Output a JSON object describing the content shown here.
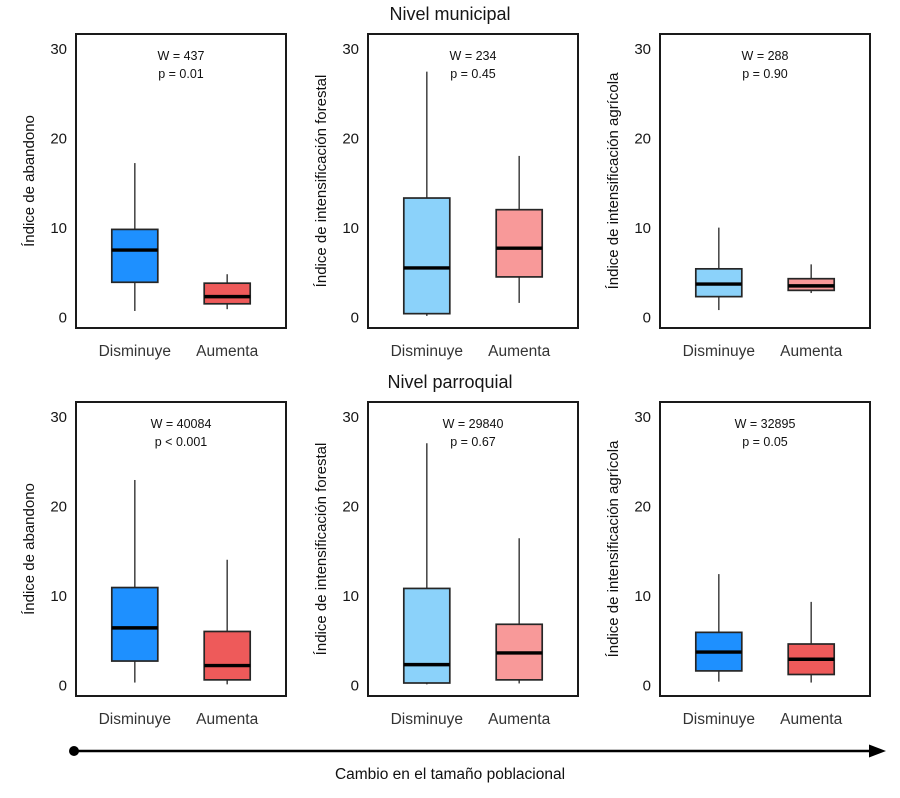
{
  "chart_data": {
    "type": "boxplot",
    "layout": "2 rows x 3 columns of panels",
    "x_categories": [
      "Disminuye",
      "Aumenta"
    ],
    "x_axis_title": "Cambio en el tamaño poblacional",
    "yticks": [
      0,
      10,
      20,
      30
    ],
    "ylim": [
      0,
      30
    ],
    "grid": "off",
    "legend": "none",
    "palette": {
      "disminuye_strong": "#1E90FF",
      "disminuye_light": "#8BD2FA",
      "aumenta_strong": "#EE5A5A",
      "aumenta_light": "#F89999",
      "box_outline": "#262626",
      "whisker": "#4d4d4d",
      "median": "#000000",
      "panel_border": "#1a1a1a"
    },
    "rows": [
      {
        "title": "Nivel municipal",
        "panels": [
          {
            "ylabel": "Índice de abandono",
            "stats_w": "W = 437",
            "stats_p": "p = 0.01",
            "boxes": [
              {
                "category": "Disminuye",
                "color_key": "disminuye_strong",
                "whisker_low": 0.7,
                "q1": 3.9,
                "median": 7.5,
                "q3": 9.8,
                "whisker_high": 17.2
              },
              {
                "category": "Aumenta",
                "color_key": "aumenta_strong",
                "whisker_low": 0.9,
                "q1": 1.5,
                "median": 2.3,
                "q3": 3.8,
                "whisker_high": 4.8
              }
            ]
          },
          {
            "ylabel": "Índice de intensificación forestal",
            "stats_w": "W = 234",
            "stats_p": "p = 0.45",
            "boxes": [
              {
                "category": "Disminuye",
                "color_key": "disminuye_light",
                "whisker_low": 0.15,
                "q1": 0.4,
                "median": 5.5,
                "q3": 13.3,
                "whisker_high": 27.4
              },
              {
                "category": "Aumenta",
                "color_key": "aumenta_light",
                "whisker_low": 1.6,
                "q1": 4.5,
                "median": 7.7,
                "q3": 12.0,
                "whisker_high": 18.0
              }
            ]
          },
          {
            "ylabel": "Índice de intensificación agrícola",
            "stats_w": "W = 288",
            "stats_p": "p = 0.90",
            "boxes": [
              {
                "category": "Disminuye",
                "color_key": "disminuye_light",
                "whisker_low": 0.8,
                "q1": 2.3,
                "median": 3.7,
                "q3": 5.4,
                "whisker_high": 10.0
              },
              {
                "category": "Aumenta",
                "color_key": "aumenta_light",
                "whisker_low": 2.7,
                "q1": 3.0,
                "median": 3.5,
                "q3": 4.3,
                "whisker_high": 5.9
              }
            ]
          }
        ]
      },
      {
        "title": "Nivel parroquial",
        "panels": [
          {
            "ylabel": "Índice de abandono",
            "stats_w": "W = 40084",
            "stats_p": "p < 0.001",
            "boxes": [
              {
                "category": "Disminuye",
                "color_key": "disminuye_strong",
                "whisker_low": 0.3,
                "q1": 2.7,
                "median": 6.4,
                "q3": 10.9,
                "whisker_high": 22.9
              },
              {
                "category": "Aumenta",
                "color_key": "aumenta_strong",
                "whisker_low": 0.1,
                "q1": 0.6,
                "median": 2.2,
                "q3": 6.0,
                "whisker_high": 14.0
              }
            ]
          },
          {
            "ylabel": "Índice de intensificación forestal",
            "stats_w": "W = 29840",
            "stats_p": "p = 0.67",
            "boxes": [
              {
                "category": "Disminuye",
                "color_key": "disminuye_light",
                "whisker_low": 0.1,
                "q1": 0.25,
                "median": 2.3,
                "q3": 10.8,
                "whisker_high": 27.0
              },
              {
                "category": "Aumenta",
                "color_key": "aumenta_light",
                "whisker_low": 0.2,
                "q1": 0.6,
                "median": 3.6,
                "q3": 6.8,
                "whisker_high": 16.4
              }
            ]
          },
          {
            "ylabel": "Índice de intensificación agrícola",
            "stats_w": "W = 32895",
            "stats_p": "p = 0.05",
            "boxes": [
              {
                "category": "Disminuye",
                "color_key": "disminuye_strong",
                "whisker_low": 0.4,
                "q1": 1.6,
                "median": 3.7,
                "q3": 5.9,
                "whisker_high": 12.4
              },
              {
                "category": "Aumenta",
                "color_key": "aumenta_strong",
                "whisker_low": 0.3,
                "q1": 1.2,
                "median": 2.9,
                "q3": 4.6,
                "whisker_high": 9.3
              }
            ]
          }
        ]
      }
    ]
  }
}
